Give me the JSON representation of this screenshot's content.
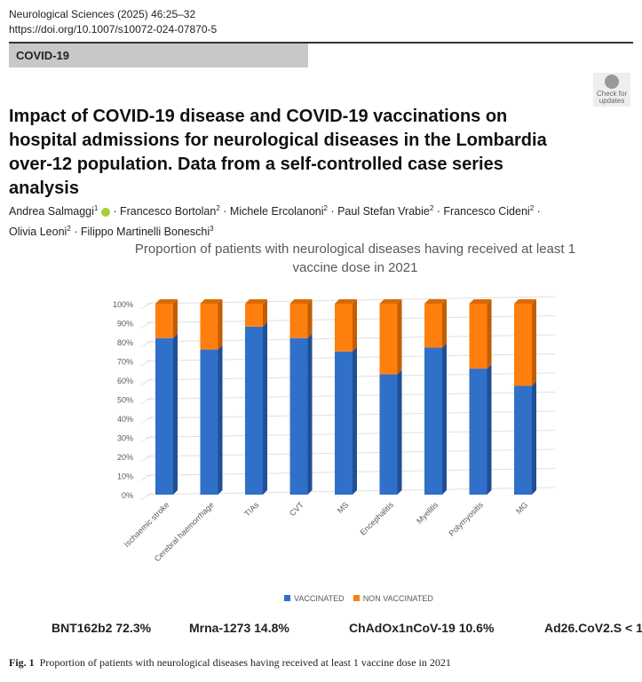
{
  "header": {
    "journal": "Neurological Sciences (2025) 46:25–32",
    "doi": "https://doi.org/10.1007/s10072-024-07870-5",
    "section": "COVID-19",
    "check_updates": "Check for updates"
  },
  "title": "Impact of COVID-19 disease and COVID-19 vaccinations on hospital admissions for neurological diseases in the Lombardia over-12 population. Data from a self-controlled case series analysis",
  "authors": [
    {
      "name": "Andrea Salmaggi",
      "aff": "1"
    },
    {
      "name": "Francesco Bortolan",
      "aff": "2"
    },
    {
      "name": "Michele Ercolanoni",
      "aff": "2"
    },
    {
      "name": "Paul Stefan Vrabie",
      "aff": "2"
    },
    {
      "name": "Francesco Cideni",
      "aff": "2"
    },
    {
      "name": "Olivia Leoni",
      "aff": "2"
    },
    {
      "name": "Filippo Martinelli Boneschi",
      "aff": "3"
    }
  ],
  "chart_data": {
    "type": "bar",
    "stacked": true,
    "title": "Proportion of patients with neurological diseases having received at least 1 vaccine dose in 2021",
    "categories": [
      "Ischaemic stroke",
      "Cerebral haemorrhage",
      "TIAs",
      "CVT",
      "MS",
      "Encephalitis",
      "Myelitis",
      "Polymyositis",
      "MG"
    ],
    "series": [
      {
        "name": "VACCINATED",
        "color": "#3070c8",
        "values": [
          82,
          76,
          88,
          82,
          75,
          63,
          77,
          66,
          57
        ]
      },
      {
        "name": "NON VACCINATED",
        "color": "#ff7f0e",
        "values": [
          18,
          24,
          12,
          18,
          25,
          37,
          23,
          34,
          43
        ]
      }
    ],
    "yticks": [
      "0%",
      "10%",
      "20%",
      "30%",
      "40%",
      "50%",
      "60%",
      "70%",
      "80%",
      "90%",
      "100%"
    ],
    "ylim": [
      0,
      100
    ],
    "grid": true,
    "legend": "bottom"
  },
  "vaccines": [
    "BNT162b2  72.3%",
    "Mrna-1273 14.8%",
    "ChAdOx1nCoV-19  10.6%",
    "Ad26.CoV2.S  < 1"
  ],
  "caption": {
    "label": "Fig. 1",
    "text": "Proportion of patients with neurological diseases having received at least 1 vaccine dose in 2021"
  }
}
